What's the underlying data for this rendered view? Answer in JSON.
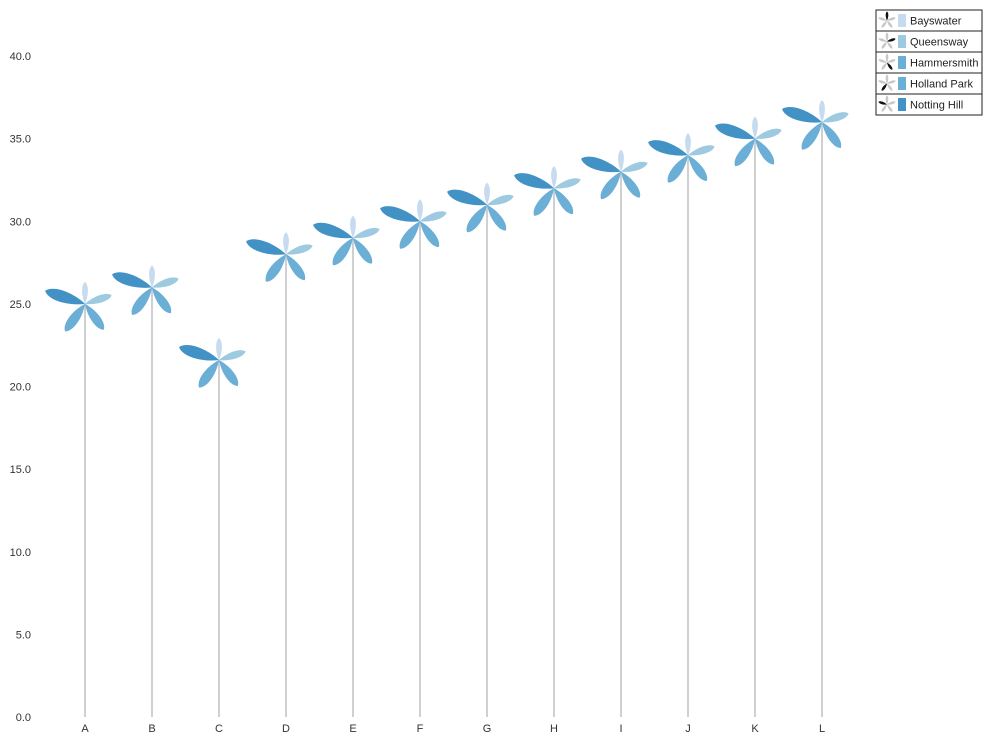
{
  "chart_data": {
    "type": "windmill",
    "categories": [
      "A",
      "B",
      "C",
      "D",
      "E",
      "F",
      "G",
      "H",
      "I",
      "J",
      "K",
      "L"
    ],
    "values": [
      25.0,
      26.0,
      21.6,
      28.0,
      29.0,
      30.0,
      31.0,
      32.0,
      33.0,
      34.0,
      35.0,
      36.0
    ],
    "ylim": [
      0,
      40
    ],
    "yticks": [
      "0.0",
      "5.0",
      "10.0",
      "15.0",
      "20.0",
      "25.0",
      "30.0",
      "35.0",
      "40.0"
    ],
    "title": "",
    "xlabel": "",
    "ylabel": "",
    "legend_position": "top-right",
    "legend": [
      "Bayswater",
      "Queensway",
      "Hammersmith",
      "Holland Park",
      "Notting Hill"
    ],
    "colors": [
      "#c6dbef",
      "#9ecae1",
      "#6baed6",
      "#6baed6",
      "#4292c6"
    ],
    "pole_color": "#d0d0d0",
    "grid": false
  }
}
